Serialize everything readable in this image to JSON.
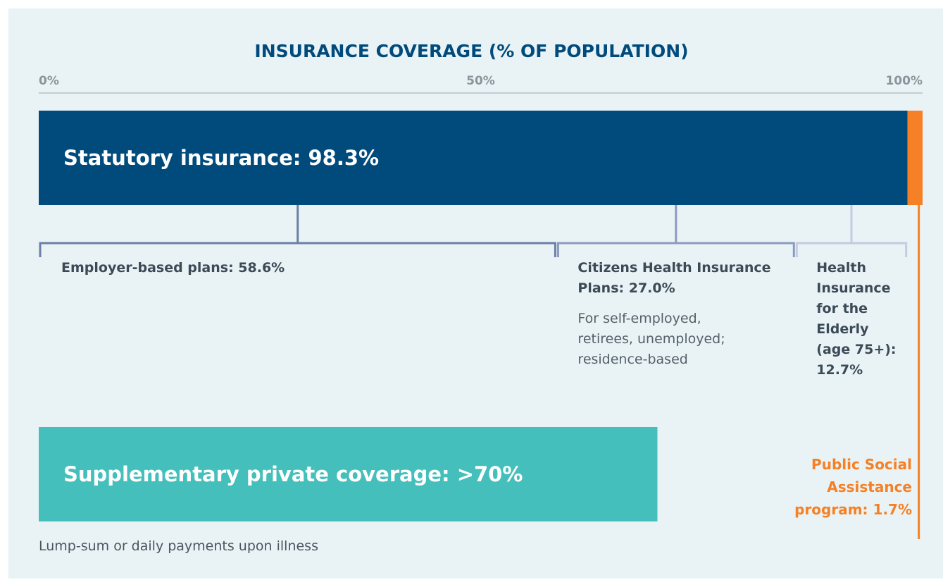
{
  "chart_data": {
    "type": "coverage",
    "title": "INSURANCE COVERAGE (% OF POPULATION)",
    "xlim": [
      0,
      100
    ],
    "xticks": [
      {
        "value": 0,
        "label": "0%"
      },
      {
        "value": 50,
        "label": "50%"
      },
      {
        "value": 100,
        "label": "100%"
      }
    ],
    "main": [
      {
        "label": "Statutory insurance: 98.3%",
        "value": 98.3,
        "color": "#004b7c"
      },
      {
        "label": "Public Social Assistance program: 1.7%",
        "value": 1.7,
        "color": "#f58025"
      }
    ],
    "plans": [
      {
        "label": "Employer-based plans: 58.6%",
        "value": 58.6,
        "color": "#6b7fa8"
      },
      {
        "label": "Citizens Health Insurance Plans: 27.0%",
        "value": 27.0,
        "color": "#8c9bbf",
        "note": "For self-employed, retirees, unemployed; residence-based"
      },
      {
        "label": "Health Insurance for the Elderly (age 75+): 12.7%",
        "value": 12.7,
        "color": "#c5cbe0"
      }
    ],
    "supplementary": {
      "label": "Supplementary private coverage: >70%",
      "value": 70,
      "color": "#45bfbb",
      "note": "Lump-sum or daily payments upon illness"
    }
  }
}
